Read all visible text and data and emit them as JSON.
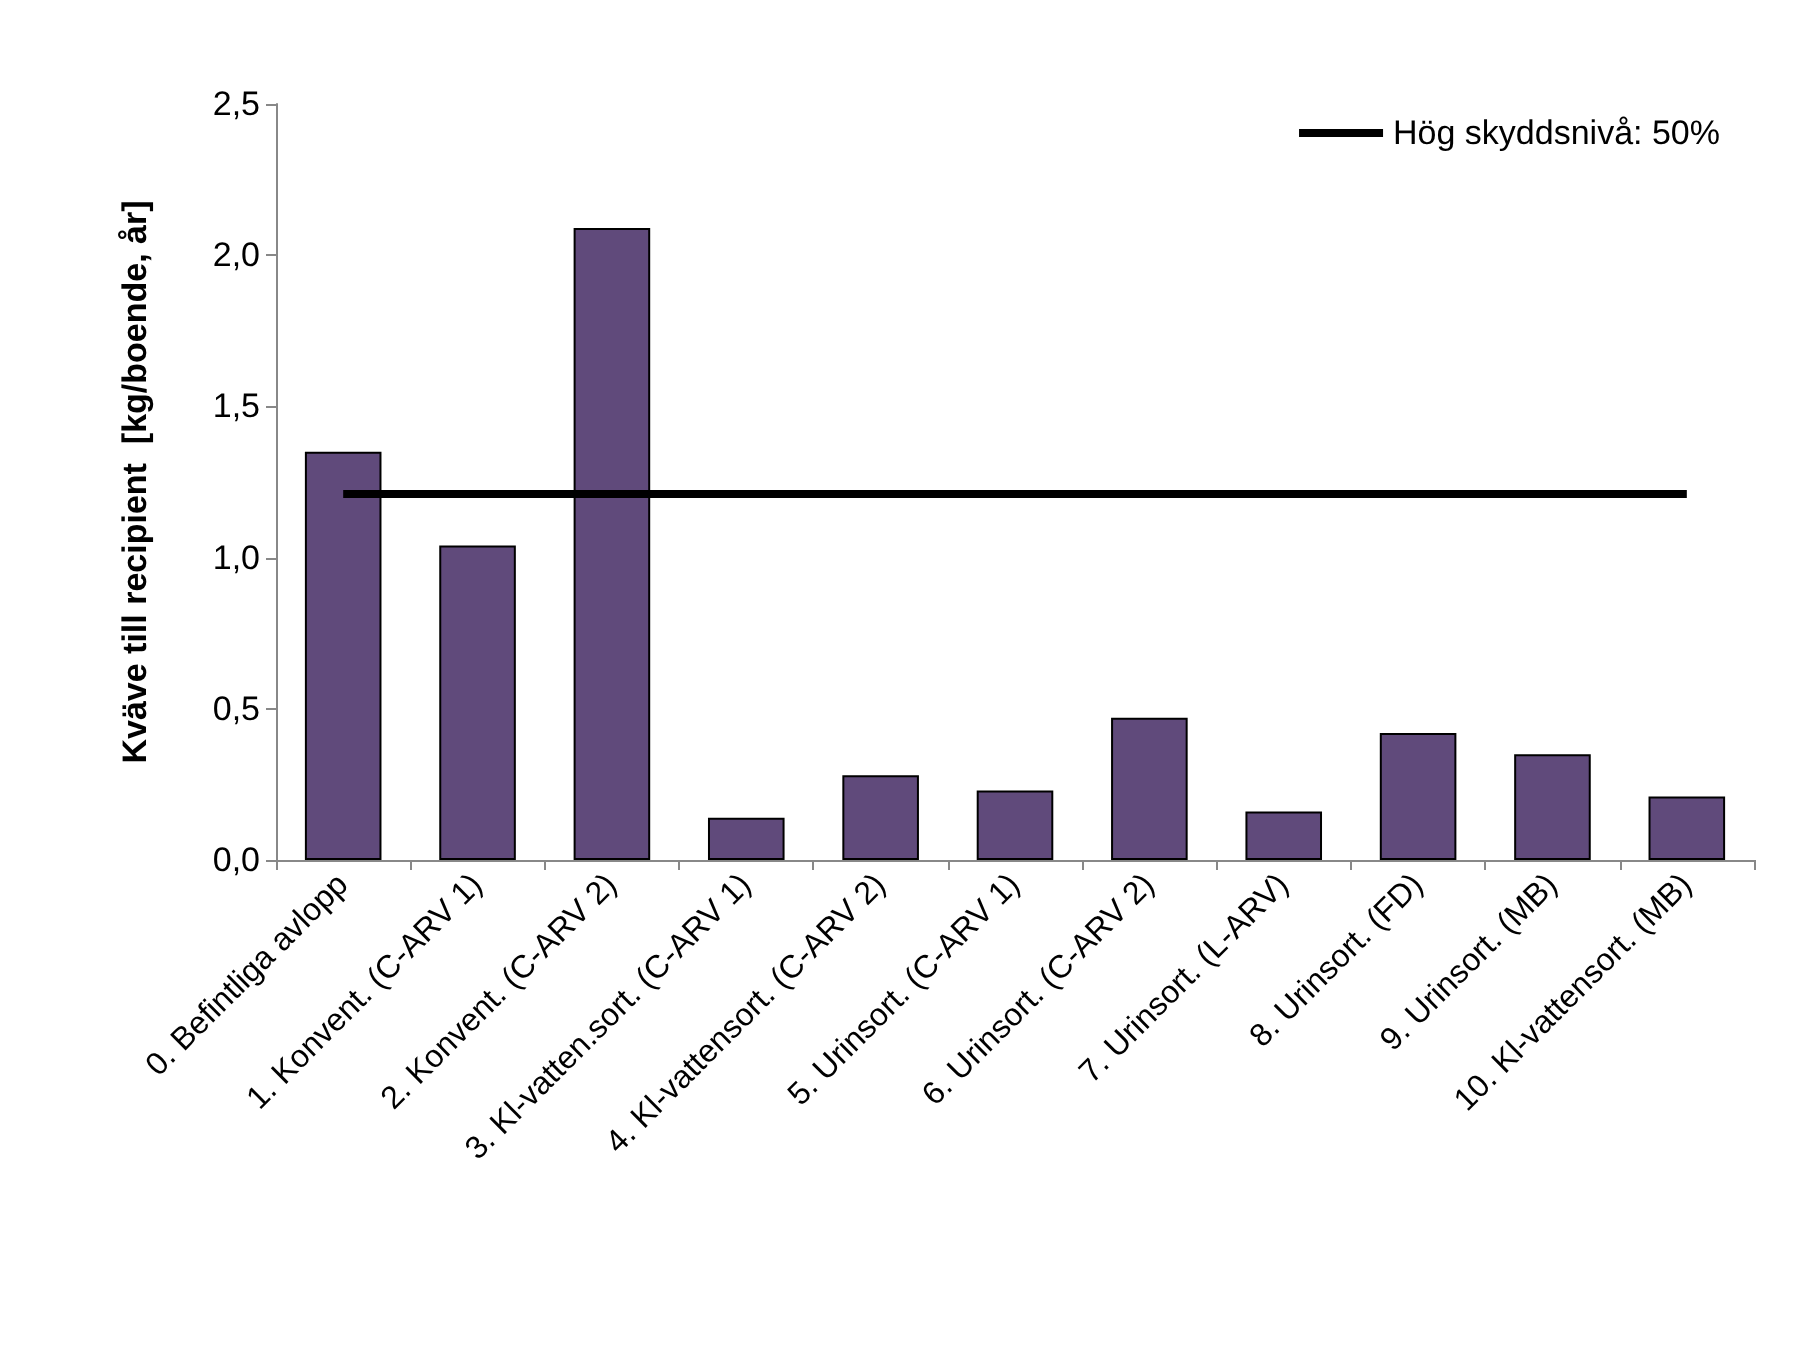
{
  "chart_data": {
    "type": "bar",
    "ylabel": "Kväve till recipient  [kg/boende, år]",
    "categories": [
      "0. Befintliga avlopp",
      "1. Konvent. (C-ARV 1)",
      "2. Konvent. (C-ARV 2)",
      "3. Kl-vatten.sort. (C-ARV 1)",
      "4. Kl-vattensort. (C-ARV 2)",
      "5. Urinsort. (C-ARV 1)",
      "6. Urinsort. (C-ARV 2)",
      "7. Urinsort. (L-ARV)",
      "8. Urinsort. (FD)",
      "9. Urinsort. (MB)",
      "10. Kl-vattensort. (MB)"
    ],
    "series": [
      {
        "color": "#604a7b",
        "values": [
          1.35,
          1.04,
          2.09,
          0.14,
          0.28,
          0.23,
          0.47,
          0.16,
          0.42,
          0.35,
          0.21
        ]
      },
      {
        "type": "line",
        "name": "Hög skyddsnivå: 50%",
        "color": "#000000",
        "values": [
          1.21,
          1.21,
          1.21,
          1.21,
          1.21,
          1.21,
          1.21,
          1.21,
          1.21,
          1.21,
          1.21
        ]
      }
    ],
    "ylim": [
      0,
      2.5
    ],
    "yticks": [
      {
        "value": 0,
        "label": "0,0"
      },
      {
        "value": 0.5,
        "label": "0,5"
      },
      {
        "value": 1,
        "label": "1,0"
      },
      {
        "value": 1.5,
        "label": "1,5"
      },
      {
        "value": 2,
        "label": "2,0"
      },
      {
        "value": 2.5,
        "label": "2,5"
      }
    ],
    "grid": false,
    "legend": "top right",
    "marker": "none",
    "line_style": "solid"
  }
}
